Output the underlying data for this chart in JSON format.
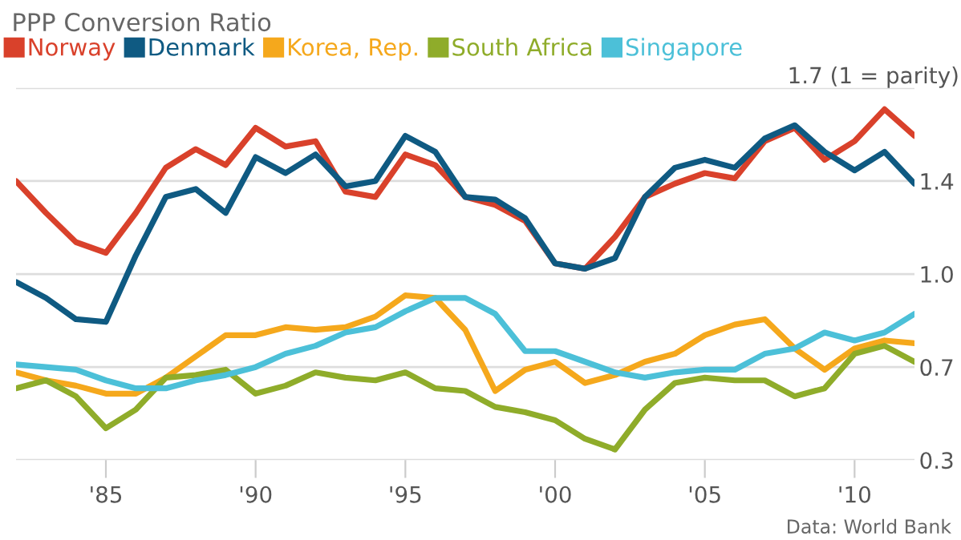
{
  "chart_data": {
    "type": "line",
    "title": "PPP Conversion Ratio",
    "x": [
      1982,
      1983,
      1984,
      1985,
      1986,
      1987,
      1988,
      1989,
      1990,
      1991,
      1992,
      1993,
      1994,
      1995,
      1996,
      1997,
      1998,
      1999,
      2000,
      2001,
      2002,
      2003,
      2004,
      2005,
      2006,
      2007,
      2008,
      2009,
      2010,
      2011,
      2012
    ],
    "series": [
      {
        "name": "Norway",
        "color": "#d9412b",
        "values": [
          1.4,
          1.28,
          1.17,
          1.13,
          1.28,
          1.45,
          1.52,
          1.46,
          1.6,
          1.53,
          1.55,
          1.36,
          1.34,
          1.5,
          1.46,
          1.34,
          1.31,
          1.25,
          1.09,
          1.07,
          1.19,
          1.34,
          1.39,
          1.43,
          1.41,
          1.55,
          1.6,
          1.48,
          1.55,
          1.67,
          1.57
        ]
      },
      {
        "name": "Denmark",
        "color": "#0f5a82",
        "values": [
          1.02,
          0.96,
          0.88,
          0.87,
          1.12,
          1.34,
          1.37,
          1.28,
          1.49,
          1.43,
          1.5,
          1.38,
          1.4,
          1.57,
          1.51,
          1.34,
          1.33,
          1.26,
          1.09,
          1.07,
          1.11,
          1.34,
          1.45,
          1.48,
          1.45,
          1.56,
          1.61,
          1.51,
          1.44,
          1.51,
          1.39
        ]
      },
      {
        "name": "Korea, Rep.",
        "color": "#f5a81c",
        "values": [
          0.68,
          0.65,
          0.63,
          0.6,
          0.6,
          0.66,
          0.74,
          0.82,
          0.82,
          0.85,
          0.84,
          0.85,
          0.89,
          0.97,
          0.96,
          0.84,
          0.61,
          0.69,
          0.72,
          0.64,
          0.67,
          0.72,
          0.75,
          0.82,
          0.86,
          0.88,
          0.77,
          0.69,
          0.77,
          0.8,
          0.79
        ]
      },
      {
        "name": "South Africa",
        "color": "#8fac2a",
        "values": [
          0.62,
          0.65,
          0.59,
          0.47,
          0.54,
          0.66,
          0.67,
          0.69,
          0.6,
          0.63,
          0.68,
          0.66,
          0.65,
          0.68,
          0.62,
          0.61,
          0.55,
          0.53,
          0.5,
          0.43,
          0.39,
          0.54,
          0.64,
          0.66,
          0.65,
          0.65,
          0.59,
          0.62,
          0.75,
          0.78,
          0.72
        ]
      },
      {
        "name": "Singapore",
        "color": "#4cc0d8",
        "values": [
          0.71,
          0.7,
          0.69,
          0.65,
          0.62,
          0.62,
          0.65,
          0.67,
          0.7,
          0.75,
          0.78,
          0.83,
          0.85,
          0.91,
          0.96,
          0.96,
          0.9,
          0.76,
          0.76,
          0.72,
          0.68,
          0.66,
          0.68,
          0.69,
          0.69,
          0.75,
          0.77,
          0.83,
          0.8,
          0.83,
          0.9
        ]
      }
    ],
    "xlim": [
      1982,
      2012
    ],
    "xticks": [
      {
        "value": 1985,
        "label": "'85"
      },
      {
        "value": 1990,
        "label": "'90"
      },
      {
        "value": 1995,
        "label": "'95"
      },
      {
        "value": 2000,
        "label": "'00"
      },
      {
        "value": 2005,
        "label": "'05"
      },
      {
        "value": 2010,
        "label": "'10"
      }
    ],
    "ylim": [
      0.35,
      1.75
    ],
    "yticks": [
      {
        "value": 0.35,
        "label": "0.3"
      },
      {
        "value": 0.7,
        "label": "0.7"
      },
      {
        "value": 1.05,
        "label": "1.0"
      },
      {
        "value": 1.4,
        "label": "1.4"
      },
      {
        "value": 1.75,
        "label": "1.7 (1 = parity)"
      }
    ],
    "grid": "y",
    "legend": "top left",
    "marker": "none",
    "line_style": "solid",
    "annotations": [
      "Data: World Bank"
    ]
  }
}
